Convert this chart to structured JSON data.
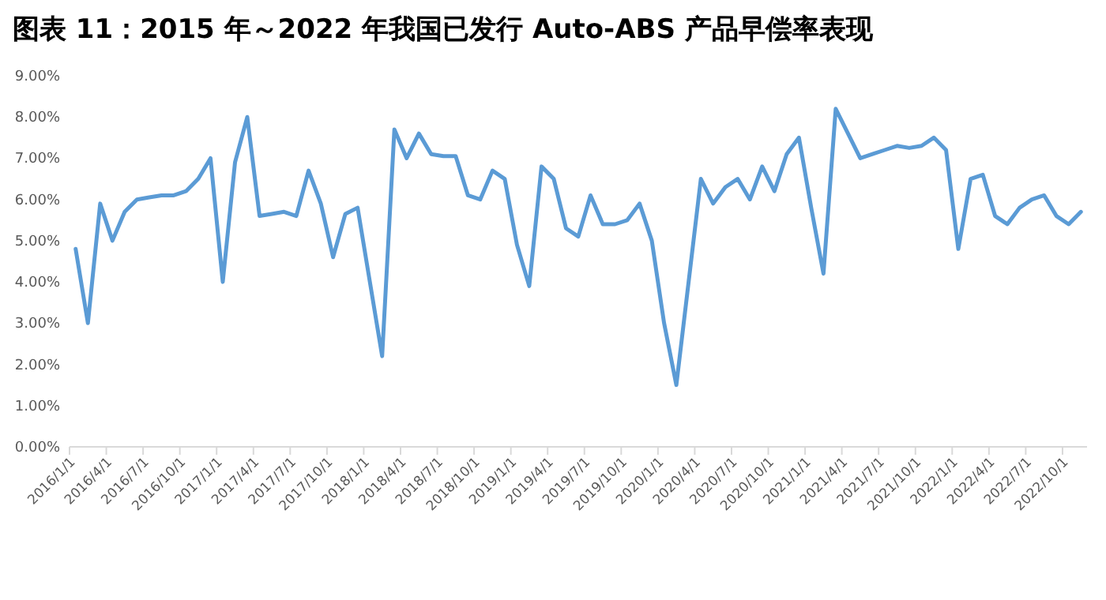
{
  "chart_data": {
    "type": "line",
    "title": "图表 11：2015 年～2022 年我国已发行 Auto-ABS 产品早偿率表现",
    "categories": [
      "2016/1/1",
      null,
      null,
      "2016/4/1",
      null,
      null,
      "2016/7/1",
      null,
      null,
      "2016/10/1",
      null,
      null,
      "2017/1/1",
      null,
      null,
      "2017/4/1",
      null,
      null,
      "2017/7/1",
      null,
      null,
      "2017/10/1",
      null,
      null,
      "2018/1/1",
      null,
      null,
      "2018/4/1",
      null,
      null,
      "2018/7/1",
      null,
      null,
      "2018/10/1",
      null,
      null,
      "2019/1/1",
      null,
      null,
      "2019/4/1",
      null,
      null,
      "2019/7/1",
      null,
      null,
      "2019/10/1",
      null,
      null,
      "2020/1/1",
      null,
      null,
      "2020/4/1",
      null,
      null,
      "2020/7/1",
      null,
      null,
      "2020/10/1",
      null,
      null,
      "2021/1/1",
      null,
      null,
      "2021/4/1",
      null,
      null,
      "2021/7/1",
      null,
      null,
      "2021/10/1",
      null,
      null,
      "2022/1/1",
      null,
      null,
      "2022/4/1",
      null,
      null,
      "2022/7/1",
      null,
      null,
      "2022/10/1",
      null
    ],
    "series": [
      {
        "color": "#5b9bd5",
        "values": [
          4.8,
          3.0,
          5.9,
          5.0,
          5.7,
          6.0,
          6.05,
          6.1,
          6.1,
          6.2,
          6.5,
          7.0,
          4.0,
          6.9,
          8.0,
          5.6,
          5.65,
          5.7,
          5.6,
          6.7,
          5.9,
          4.6,
          5.65,
          5.8,
          4.0,
          2.2,
          7.7,
          7.0,
          7.6,
          7.1,
          7.05,
          7.05,
          6.1,
          6.0,
          6.7,
          6.5,
          4.9,
          3.9,
          6.8,
          6.5,
          5.3,
          5.1,
          6.1,
          5.4,
          5.4,
          5.5,
          5.9,
          5.0,
          3.0,
          1.5,
          4.0,
          6.5,
          5.9,
          6.3,
          6.5,
          6.0,
          6.8,
          6.2,
          7.1,
          7.5,
          5.8,
          4.2,
          8.2,
          7.6,
          7.0,
          7.1,
          7.2,
          7.3,
          7.25,
          7.3,
          7.5,
          7.2,
          4.8,
          6.5,
          6.6,
          5.6,
          5.4,
          5.8,
          6.0,
          6.1,
          5.6,
          5.4,
          5.7
        ]
      }
    ],
    "ylim": [
      0,
      9
    ],
    "yticks": [
      {
        "value": 0,
        "label": "0.00%"
      },
      {
        "value": 1,
        "label": "1.00%"
      },
      {
        "value": 2,
        "label": "2.00%"
      },
      {
        "value": 3,
        "label": "3.00%"
      },
      {
        "value": 4,
        "label": "4.00%"
      },
      {
        "value": 5,
        "label": "5.00%"
      },
      {
        "value": 6,
        "label": "6.00%"
      },
      {
        "value": 7,
        "label": "7.00%"
      },
      {
        "value": 8,
        "label": "8.00%"
      },
      {
        "value": 9,
        "label": "9.00%"
      }
    ],
    "grid": false,
    "marker": "none",
    "line_style": "solid"
  }
}
